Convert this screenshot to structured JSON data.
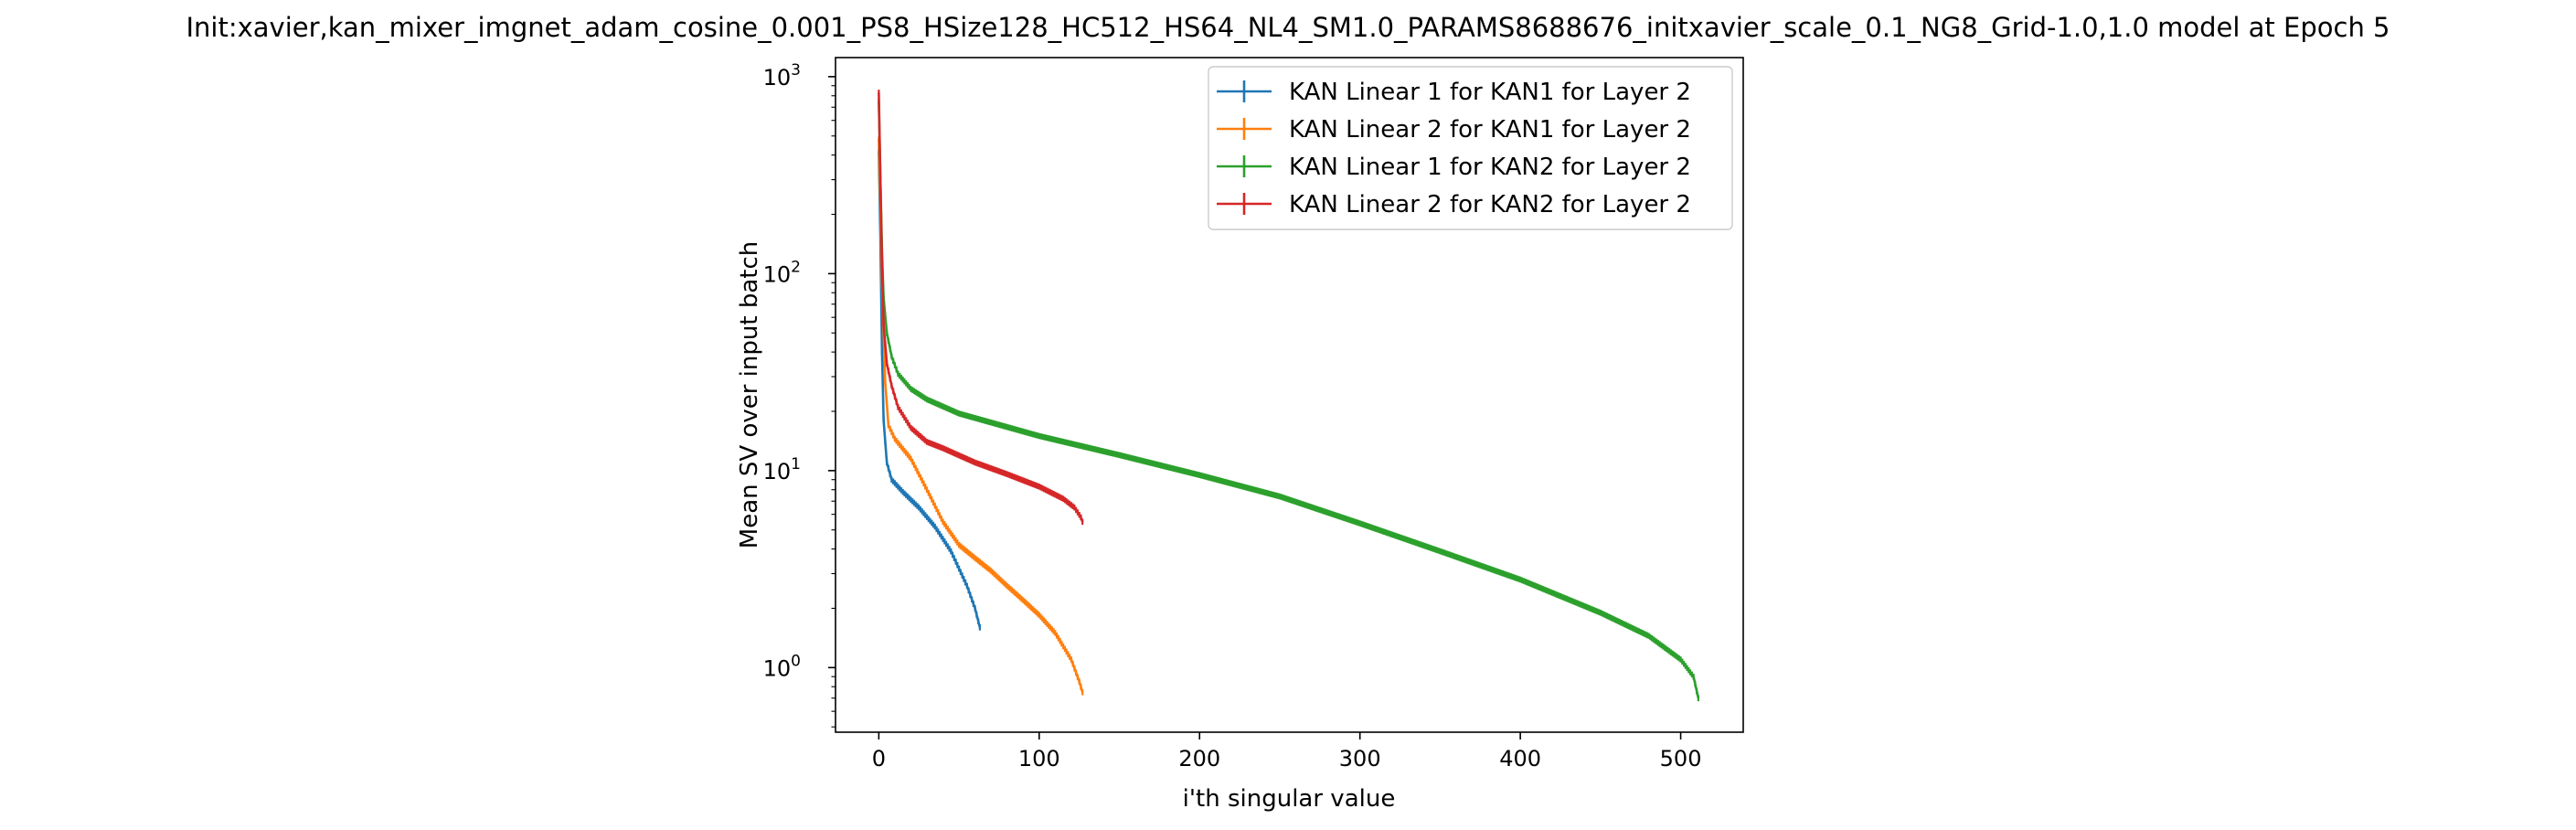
{
  "chart_data": {
    "type": "line",
    "title": "Init:xavier,kan_mixer_imgnet_adam_cosine_0.001_PS8_HSize128_HC512_HS64_NL4_SM1.0_PARAMS8688676_initxavier_scale_0.1_NG8_Grid-1.0,1.0 model at Epoch 5",
    "xlabel": "i'th singular value",
    "ylabel": "Mean SV over input batch",
    "xlim": [
      -27,
      539
    ],
    "ylim": [
      0.47,
      1250
    ],
    "yscale": "log",
    "x_ticks": [
      0,
      100,
      200,
      300,
      400,
      500
    ],
    "y_ticks": [
      {
        "value": 1,
        "base": "10",
        "exp": "0"
      },
      {
        "value": 10,
        "base": "10",
        "exp": "1"
      },
      {
        "value": 100,
        "base": "10",
        "exp": "2"
      },
      {
        "value": 1000,
        "base": "10",
        "exp": "3"
      }
    ],
    "grid": false,
    "legend_position": "upper right",
    "error_bars": true,
    "series": [
      {
        "name": "KAN Linear 1 for KAN1 for Layer 2",
        "color": "#1f77b4",
        "n": 64,
        "points": [
          [
            0,
            420
          ],
          [
            1,
            150
          ],
          [
            2,
            40
          ],
          [
            3,
            18
          ],
          [
            5,
            11
          ],
          [
            8,
            9
          ],
          [
            15,
            7.8
          ],
          [
            25,
            6.5
          ],
          [
            35,
            5.2
          ],
          [
            45,
            3.9
          ],
          [
            55,
            2.6
          ],
          [
            60,
            2.0
          ],
          [
            63,
            1.6
          ]
        ]
      },
      {
        "name": "KAN Linear 2 for KAN1 for Layer 2",
        "color": "#ff7f0e",
        "n": 128,
        "points": [
          [
            0,
            480
          ],
          [
            1,
            220
          ],
          [
            2,
            90
          ],
          [
            4,
            28
          ],
          [
            6,
            17
          ],
          [
            10,
            14.5
          ],
          [
            20,
            11.5
          ],
          [
            30,
            8
          ],
          [
            40,
            5.5
          ],
          [
            50,
            4.2
          ],
          [
            60,
            3.6
          ],
          [
            70,
            3.1
          ],
          [
            80,
            2.6
          ],
          [
            90,
            2.2
          ],
          [
            100,
            1.85
          ],
          [
            110,
            1.5
          ],
          [
            120,
            1.1
          ],
          [
            125,
            0.85
          ],
          [
            127,
            0.75
          ]
        ]
      },
      {
        "name": "KAN Linear 1 for KAN2 for Layer 2",
        "color": "#2ca02c",
        "n": 512,
        "points": [
          [
            0,
            750
          ],
          [
            1,
            300
          ],
          [
            2,
            130
          ],
          [
            3,
            75
          ],
          [
            5,
            50
          ],
          [
            8,
            38
          ],
          [
            12,
            31
          ],
          [
            20,
            26
          ],
          [
            30,
            23
          ],
          [
            50,
            19.5
          ],
          [
            100,
            15
          ],
          [
            150,
            12
          ],
          [
            200,
            9.5
          ],
          [
            250,
            7.4
          ],
          [
            300,
            5.4
          ],
          [
            350,
            3.9
          ],
          [
            400,
            2.8
          ],
          [
            450,
            1.9
          ],
          [
            480,
            1.45
          ],
          [
            500,
            1.1
          ],
          [
            508,
            0.9
          ],
          [
            511,
            0.7
          ]
        ]
      },
      {
        "name": "KAN Linear 2 for KAN2 for Layer 2",
        "color": "#d62728",
        "n": 128,
        "points": [
          [
            0,
            830
          ],
          [
            1,
            300
          ],
          [
            2,
            110
          ],
          [
            3,
            55
          ],
          [
            5,
            35
          ],
          [
            8,
            27
          ],
          [
            12,
            21
          ],
          [
            20,
            16.5
          ],
          [
            30,
            14
          ],
          [
            40,
            13
          ],
          [
            60,
            11
          ],
          [
            80,
            9.6
          ],
          [
            100,
            8.3
          ],
          [
            115,
            7.2
          ],
          [
            122,
            6.5
          ],
          [
            126,
            5.8
          ],
          [
            127,
            5.5
          ]
        ]
      }
    ]
  }
}
